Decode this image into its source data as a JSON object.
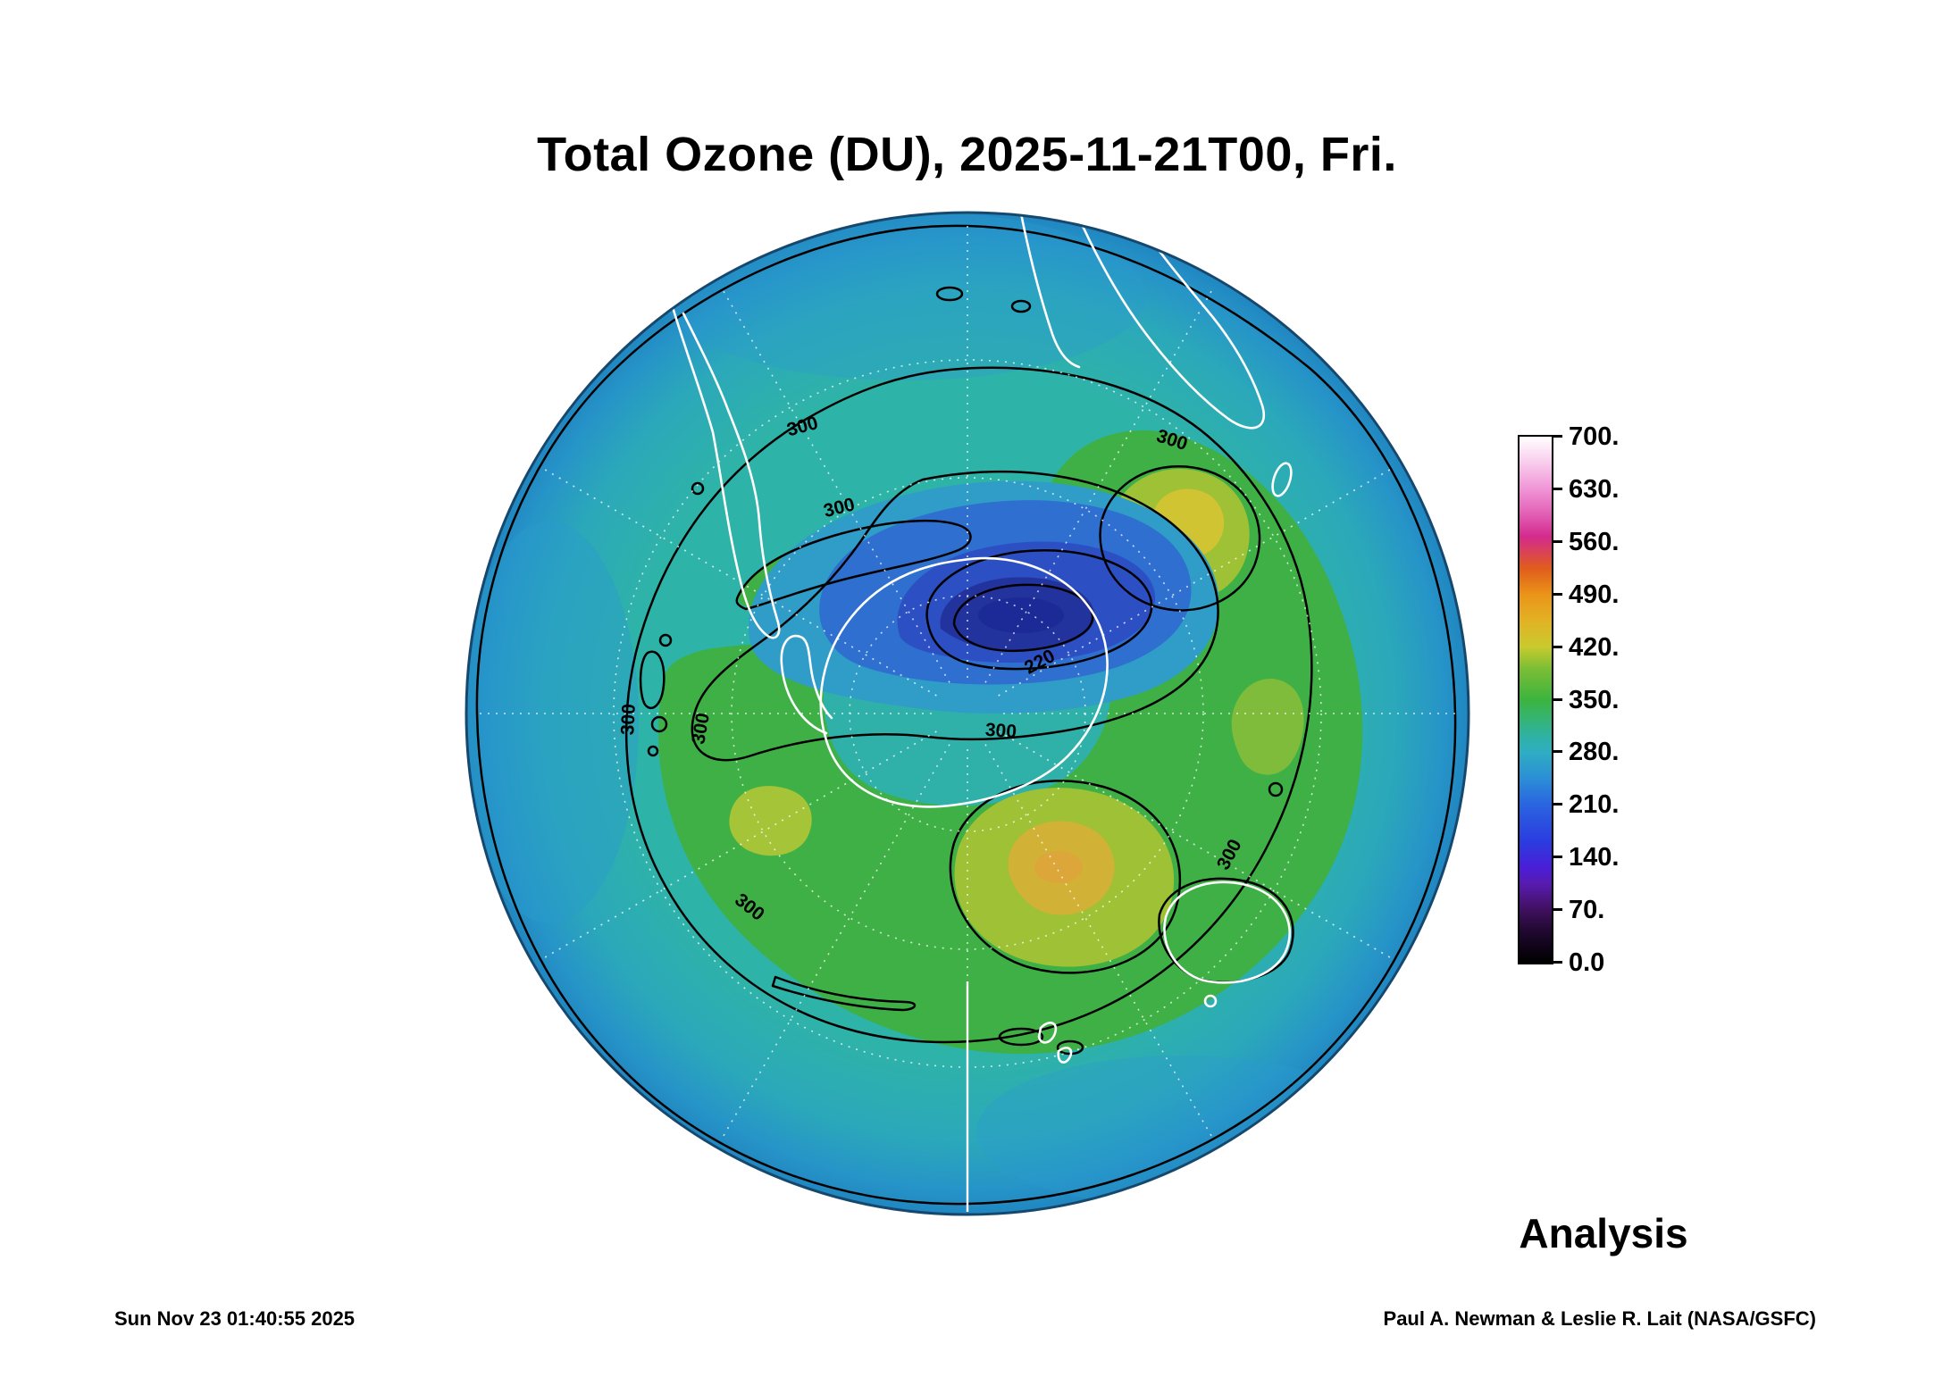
{
  "title": "Total Ozone (DU), 2025-11-21T00, Fri.",
  "analysis_label": "Analysis",
  "footer": {
    "timestamp": "Sun Nov 23 01:40:55 2025",
    "credit": "Paul A. Newman & Leslie R. Lait (NASA/GSFC)"
  },
  "colorbar": {
    "units": "DU",
    "min": 0,
    "max": 700,
    "ticks": [
      "700.",
      "630.",
      "560.",
      "490.",
      "420.",
      "350.",
      "280.",
      "210.",
      "140.",
      "70.",
      "0.0"
    ]
  },
  "map": {
    "projection": "Southern Hemisphere polar stereographic",
    "contour_labels": [
      {
        "text": "300"
      },
      {
        "text": "300"
      },
      {
        "text": "300"
      },
      {
        "text": "300"
      },
      {
        "text": "300"
      },
      {
        "text": "300"
      },
      {
        "text": "220"
      },
      {
        "text": "300"
      },
      {
        "text": "300"
      }
    ]
  },
  "chart_data": {
    "type": "heatmap",
    "title": "Total Ozone (DU), 2025-11-21T00, Fri.",
    "units": "DU",
    "legend_position": "right",
    "colorbar_ticks": [
      0,
      70,
      140,
      210,
      280,
      350,
      420,
      490,
      560,
      630,
      700
    ],
    "contour_levels_labeled": [
      220,
      300
    ],
    "value_range_shown": [
      0,
      700
    ],
    "annotation": "Analysis",
    "features": [
      {
        "name": "polar-ozone-low-core",
        "approx_value_DU": "180-220",
        "location": "over Antarctica, offset from pole"
      },
      {
        "name": "ozone-low-ring",
        "approx_value_DU": "220-300",
        "location": "surrounding polar low"
      },
      {
        "name": "background-field",
        "approx_value_DU": "280-320",
        "location": "most of hemisphere (teal)"
      },
      {
        "name": "midlatitude-highs",
        "approx_value_DU": "380-440",
        "location": "green/yellow patches upper-right and lower-middle"
      }
    ],
    "colorscale": [
      {
        "value": 0,
        "color": "#000000"
      },
      {
        "value": 70,
        "color": "#3c0a54"
      },
      {
        "value": 140,
        "color": "#4418c8"
      },
      {
        "value": 210,
        "color": "#2a62e0"
      },
      {
        "value": 280,
        "color": "#2fadc2"
      },
      {
        "value": 350,
        "color": "#3cb43e"
      },
      {
        "value": 420,
        "color": "#c6ca2e"
      },
      {
        "value": 490,
        "color": "#e89418"
      },
      {
        "value": 560,
        "color": "#d02a8e"
      },
      {
        "value": 630,
        "color": "#ec8cd0"
      },
      {
        "value": 700,
        "color": "#ffffff"
      }
    ]
  }
}
